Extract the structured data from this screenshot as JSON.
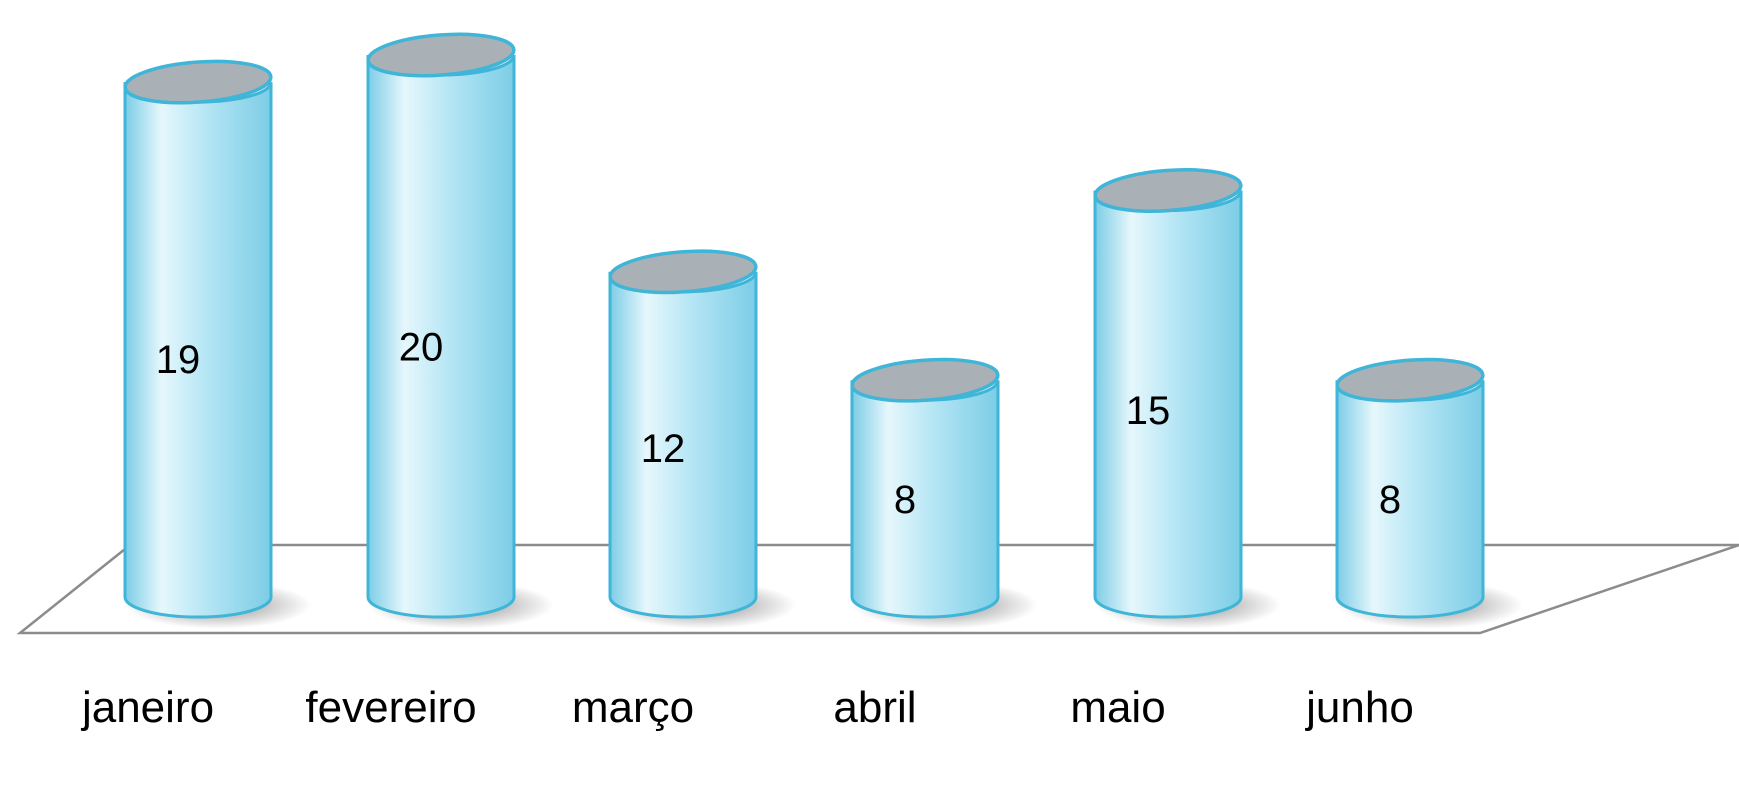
{
  "chart_data": {
    "type": "bar",
    "style": "3d-cylinder",
    "categories": [
      "janeiro",
      "fevereiro",
      "março",
      "abril",
      "maio",
      "junho"
    ],
    "values": [
      19,
      20,
      12,
      8,
      15,
      8
    ],
    "title": "",
    "xlabel": "",
    "ylabel": "",
    "grid": false,
    "legend": "none",
    "data_labels": "inside",
    "colors": {
      "cylinder_body_light": "#e6f7fc",
      "cylinder_body_mid": "#b6e6f5",
      "cylinder_body_dark": "#7ccde6",
      "cylinder_outline": "#3fb5d8",
      "cylinder_top": "#aab1b6",
      "floor_outline": "#8c8c8c",
      "label_text": "#000000"
    }
  }
}
